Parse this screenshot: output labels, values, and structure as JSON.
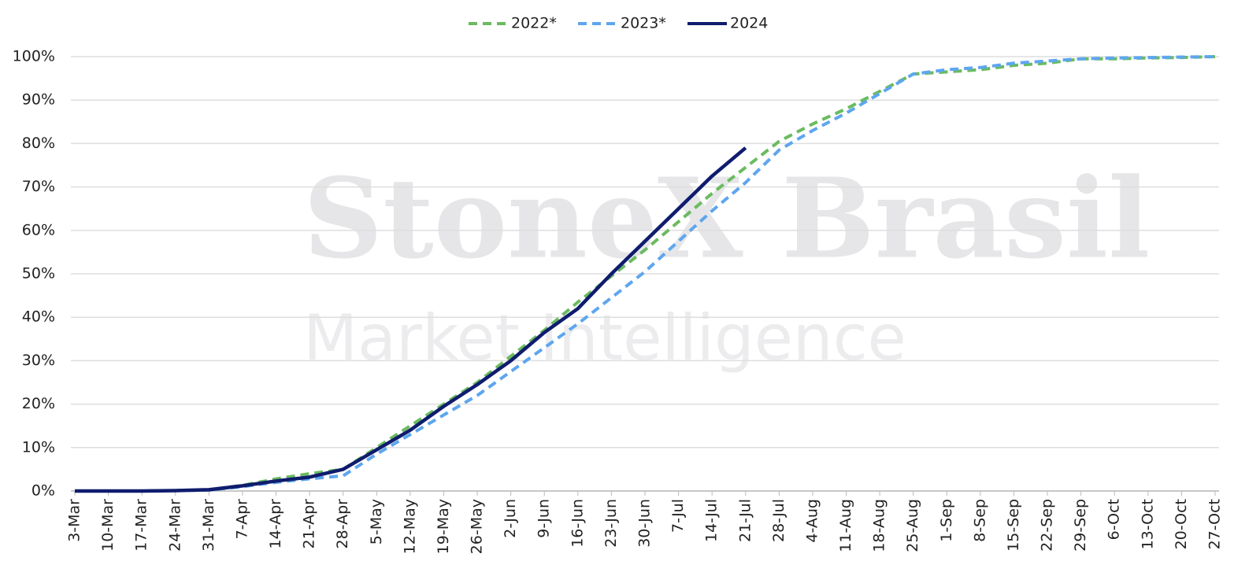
{
  "chart_data": {
    "type": "line",
    "watermark": [
      "StoneX Brasil",
      "Market Intelligence"
    ],
    "categories": [
      "3-Mar",
      "10-Mar",
      "17-Mar",
      "24-Mar",
      "31-Mar",
      "7-Apr",
      "14-Apr",
      "21-Apr",
      "28-Apr",
      "5-May",
      "12-May",
      "19-May",
      "26-May",
      "2-Jun",
      "9-Jun",
      "16-Jun",
      "23-Jun",
      "30-Jun",
      "7-Jul",
      "14-Jul",
      "21-Jul",
      "28-Jul",
      "4-Aug",
      "11-Aug",
      "18-Aug",
      "25-Aug",
      "1-Sep",
      "8-Sep",
      "15-Sep",
      "22-Sep",
      "29-Sep",
      "6-Oct",
      "13-Oct",
      "20-Oct",
      "27-Oct"
    ],
    "series": [
      {
        "name": "2022*",
        "color": "#6abb5f",
        "dashed": true,
        "values": [
          0,
          0,
          0,
          0.1,
          0.3,
          1.3,
          2.8,
          4,
          5,
          10,
          15,
          20,
          25,
          31,
          37,
          43.5,
          49.5,
          55.5,
          62,
          68.5,
          74.5,
          80.5,
          84.5,
          88,
          92,
          96,
          96.5,
          97,
          98,
          98.5,
          99.5,
          99.5,
          99.7,
          99.8,
          100
        ]
      },
      {
        "name": "2023*",
        "color": "#5ea6ee",
        "dashed": true,
        "values": [
          0,
          0,
          0,
          0.1,
          0.2,
          1,
          2,
          2.8,
          3.5,
          8.5,
          13,
          17.5,
          22,
          27.5,
          33,
          38.5,
          44.5,
          50.5,
          57.5,
          64.5,
          71,
          78.5,
          83,
          87,
          91.5,
          96,
          97,
          97.5,
          98.5,
          99,
          99.5,
          99.7,
          99.8,
          99.9,
          100
        ]
      },
      {
        "name": "2024",
        "color": "#0f1c6e",
        "dashed": false,
        "values": [
          0,
          0,
          0,
          0.1,
          0.3,
          1.2,
          2.3,
          3.2,
          5,
          9.5,
          14,
          19.5,
          24.5,
          30,
          36.5,
          42,
          50,
          57.5,
          65,
          72.5,
          79,
          null,
          null,
          null,
          null,
          null,
          null,
          null,
          null,
          null,
          null,
          null,
          null,
          null,
          null
        ]
      }
    ],
    "ylim": [
      0,
      100
    ],
    "yticks": [
      {
        "value": 0,
        "label": "0%"
      },
      {
        "value": 10,
        "label": "10%"
      },
      {
        "value": 20,
        "label": "20%"
      },
      {
        "value": 30,
        "label": "30%"
      },
      {
        "value": 40,
        "label": "40%"
      },
      {
        "value": 50,
        "label": "50%"
      },
      {
        "value": 60,
        "label": "60%"
      },
      {
        "value": 70,
        "label": "70%"
      },
      {
        "value": 80,
        "label": "80%"
      },
      {
        "value": 90,
        "label": "90%"
      },
      {
        "value": 100,
        "label": "100%"
      }
    ],
    "grid": true
  }
}
